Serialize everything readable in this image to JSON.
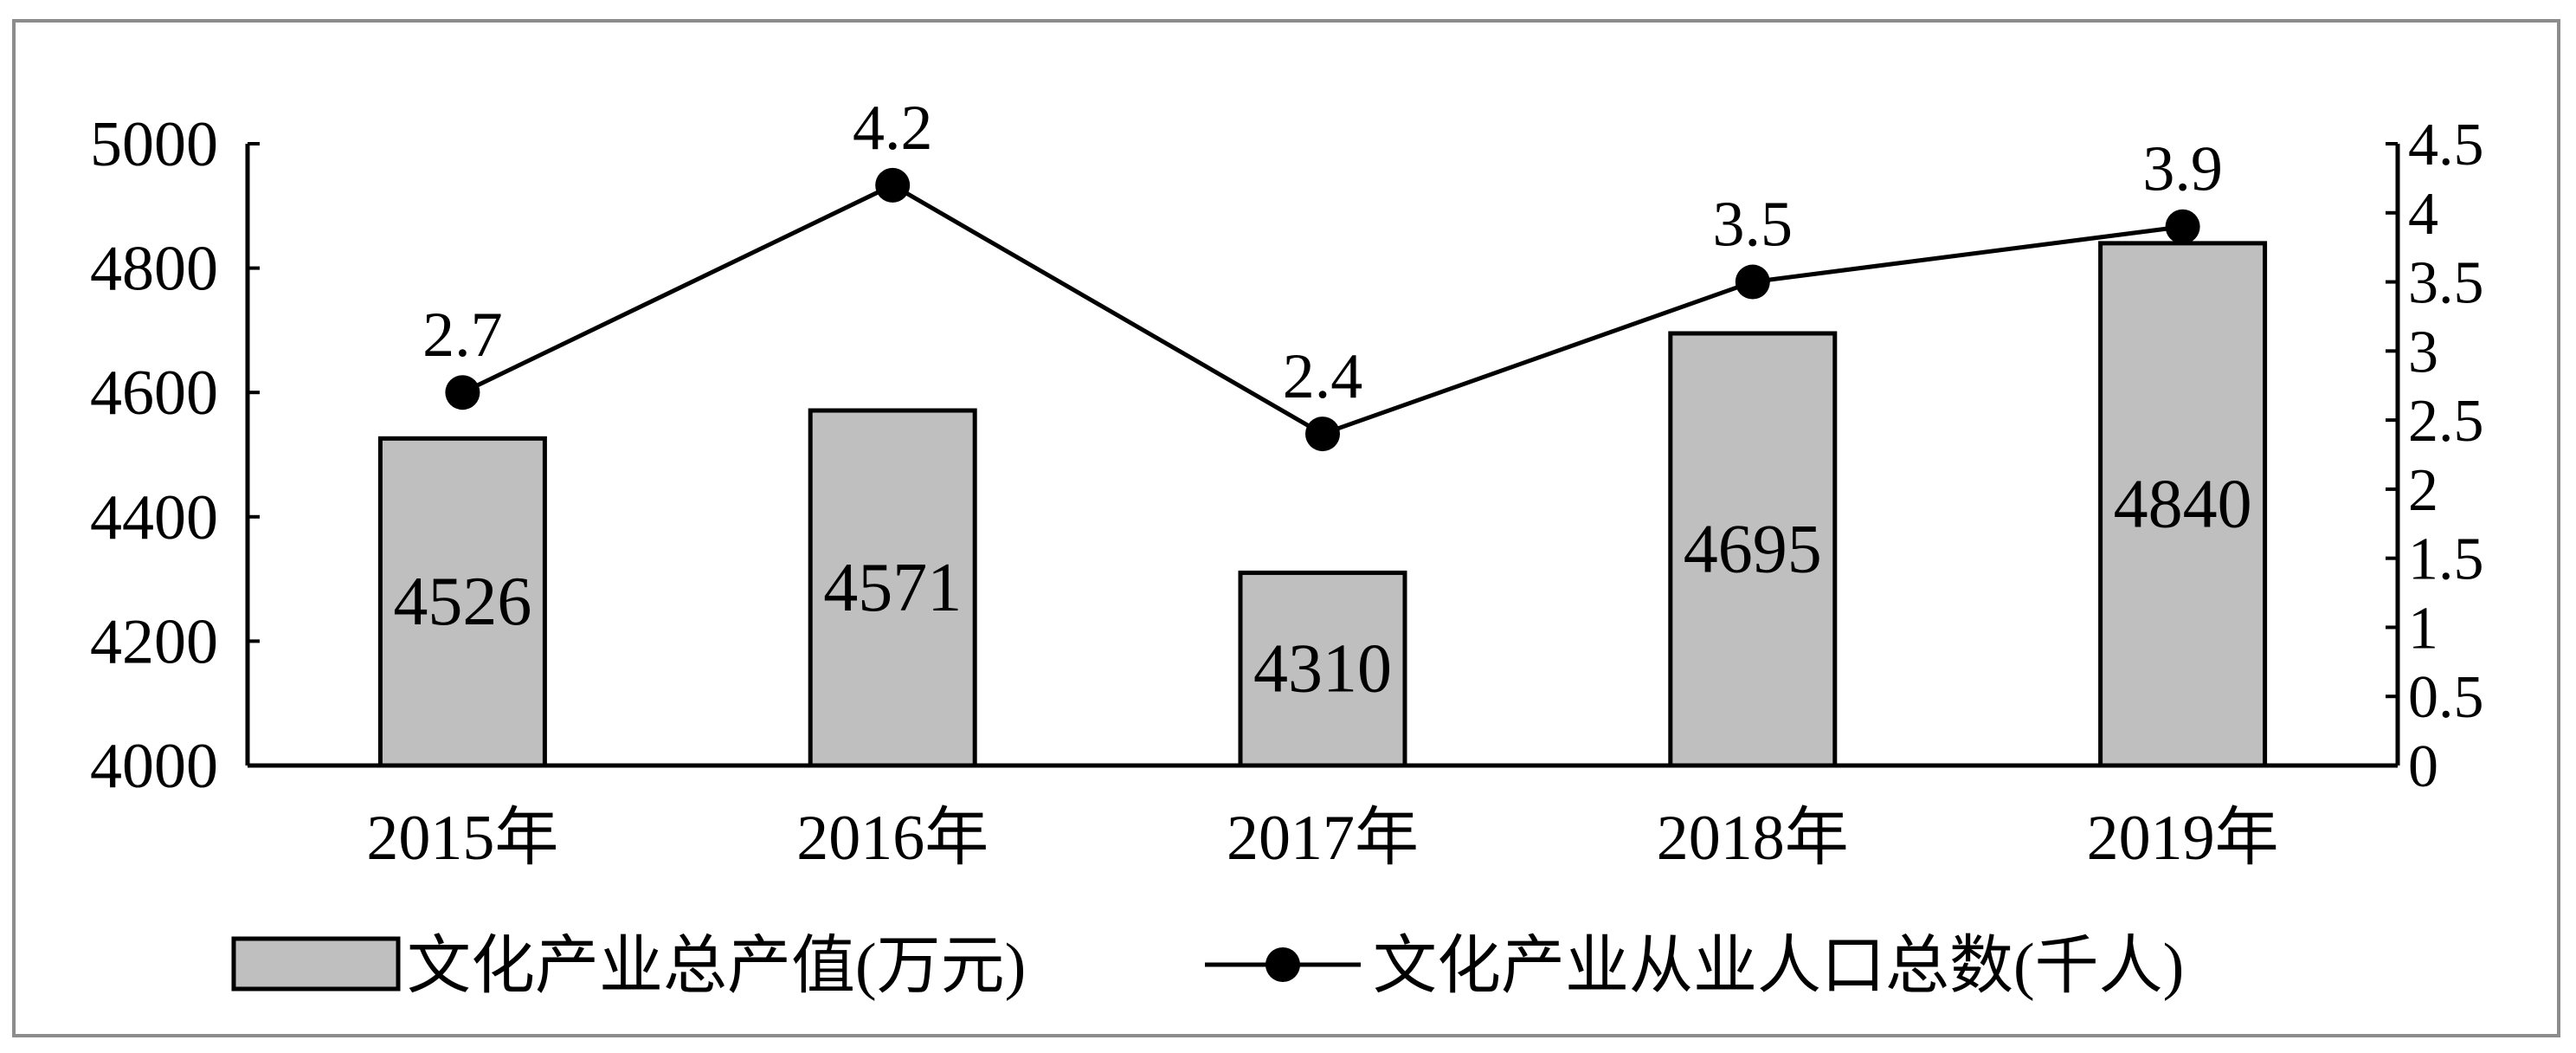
{
  "chart_data": {
    "type": "bar+line",
    "title": "",
    "categories": [
      "2015年",
      "2016年",
      "2017年",
      "2018年",
      "2019年"
    ],
    "left_axis": {
      "ylim": [
        4000,
        5000
      ],
      "ticks": [
        4000,
        4200,
        4400,
        4600,
        4800,
        5000
      ]
    },
    "right_axis": {
      "ylim": [
        0,
        4.5
      ],
      "ticks": [
        "0",
        "0.5",
        "1",
        "1.5",
        "2",
        "2.5",
        "3",
        "3.5",
        "4",
        "4.5"
      ]
    },
    "series": [
      {
        "name": "文化产业总产值(万元)",
        "type": "bar",
        "axis": "left",
        "values": [
          4526,
          4571,
          4310,
          4695,
          4840
        ]
      },
      {
        "name": "文化产业从业人口总数(千人)",
        "type": "line",
        "axis": "right",
        "values": [
          2.7,
          4.2,
          2.4,
          3.5,
          3.9
        ]
      }
    ],
    "legend": "bottom",
    "grid": false,
    "colors": {
      "bar_fill": "#bfbfbf",
      "stroke": "#000000",
      "frame": "#8c8c8c"
    }
  }
}
